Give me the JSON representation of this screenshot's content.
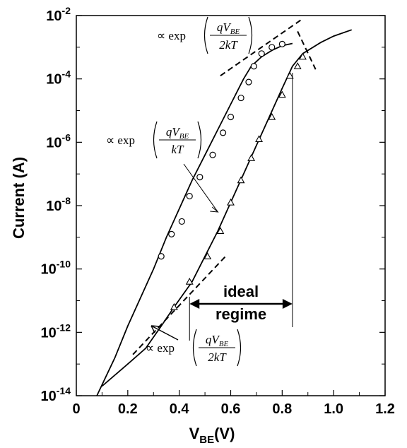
{
  "chart_data": {
    "type": "line",
    "title": "",
    "xlabel": "V",
    "xlabel_sub": "BE",
    "xlabel_unit": "(V)",
    "ylabel": "Current (A)",
    "xlim": [
      0,
      1.2
    ],
    "ylim_log10": [
      -14,
      -2
    ],
    "y_scale": "log",
    "grid": false,
    "x_ticks": [
      {
        "value": 0,
        "label": "0"
      },
      {
        "value": 0.2,
        "label": "0.2"
      },
      {
        "value": 0.4,
        "label": "0.4"
      },
      {
        "value": 0.6,
        "label": "0.6"
      },
      {
        "value": 0.8,
        "label": "0.8"
      },
      {
        "value": 1.0,
        "label": "1.0"
      },
      {
        "value": 1.2,
        "label": "1.2"
      }
    ],
    "y_ticks": [
      {
        "exp": -2,
        "base": "10",
        "sup": "-2"
      },
      {
        "exp": -4,
        "base": "10",
        "sup": "-4"
      },
      {
        "exp": -6,
        "base": "10",
        "sup": "-6"
      },
      {
        "exp": -8,
        "base": "10",
        "sup": "-8"
      },
      {
        "exp": -10,
        "base": "10",
        "sup": "-10"
      },
      {
        "exp": -12,
        "base": "10",
        "sup": "-12"
      },
      {
        "exp": -14,
        "base": "10",
        "sup": "-14"
      }
    ],
    "series": [
      {
        "marker": "circle",
        "curve": [
          [
            0.08,
            -14.0
          ],
          [
            0.15,
            -12.8
          ],
          [
            0.2,
            -11.8
          ],
          [
            0.3,
            -10.0
          ],
          [
            0.35,
            -9.0
          ],
          [
            0.4,
            -8.1
          ],
          [
            0.45,
            -7.2
          ],
          [
            0.5,
            -6.4
          ],
          [
            0.55,
            -5.6
          ],
          [
            0.6,
            -4.8
          ],
          [
            0.65,
            -4.0
          ],
          [
            0.68,
            -3.6
          ],
          [
            0.72,
            -3.3
          ],
          [
            0.76,
            -3.1
          ],
          [
            0.8,
            -2.95
          ],
          [
            0.84,
            -2.88
          ]
        ],
        "points": [
          [
            0.33,
            -9.6
          ],
          [
            0.37,
            -8.9
          ],
          [
            0.41,
            -8.5
          ],
          [
            0.44,
            -7.7
          ],
          [
            0.48,
            -7.1
          ],
          [
            0.53,
            -6.4
          ],
          [
            0.57,
            -5.7
          ],
          [
            0.6,
            -5.2
          ],
          [
            0.64,
            -4.6
          ],
          [
            0.67,
            -4.1
          ],
          [
            0.69,
            -3.6
          ],
          [
            0.72,
            -3.2
          ],
          [
            0.76,
            -3.0
          ],
          [
            0.8,
            -2.9
          ]
        ]
      },
      {
        "marker": "triangle",
        "curve": [
          [
            0.1,
            -13.7
          ],
          [
            0.2,
            -13.0
          ],
          [
            0.27,
            -12.5
          ],
          [
            0.33,
            -11.8
          ],
          [
            0.38,
            -11.2
          ],
          [
            0.45,
            -10.4
          ],
          [
            0.5,
            -9.6
          ],
          [
            0.55,
            -8.8
          ],
          [
            0.6,
            -7.9
          ],
          [
            0.65,
            -7.0
          ],
          [
            0.7,
            -6.1
          ],
          [
            0.75,
            -5.2
          ],
          [
            0.8,
            -4.3
          ],
          [
            0.84,
            -3.6
          ],
          [
            0.88,
            -3.2
          ],
          [
            0.95,
            -2.85
          ],
          [
            1.0,
            -2.65
          ],
          [
            1.07,
            -2.45
          ]
        ],
        "points": [
          [
            0.38,
            -11.2
          ],
          [
            0.44,
            -10.4
          ],
          [
            0.51,
            -9.6
          ],
          [
            0.56,
            -8.8
          ],
          [
            0.6,
            -7.9
          ],
          [
            0.64,
            -7.2
          ],
          [
            0.68,
            -6.5
          ],
          [
            0.71,
            -5.9
          ],
          [
            0.76,
            -5.2
          ],
          [
            0.8,
            -4.5
          ],
          [
            0.83,
            -3.9
          ],
          [
            0.86,
            -3.6
          ],
          [
            0.88,
            -3.3
          ]
        ]
      }
    ],
    "fit_lines": [
      {
        "style": "dashed",
        "from": [
          0.56,
          -3.9
        ],
        "to": [
          0.88,
          -2.1
        ]
      },
      {
        "style": "dashed",
        "from": [
          0.22,
          -12.7
        ],
        "to": [
          0.58,
          -9.6
        ]
      },
      {
        "style": "dashed",
        "from": [
          0.86,
          -2.5
        ],
        "to": [
          0.93,
          -3.7
        ]
      }
    ],
    "annotations": {
      "top": {
        "prefix": "∝ exp",
        "num": "qV",
        "num_sub": "BE",
        "den": "2kT"
      },
      "middle": {
        "prefix": "∝ exp",
        "num": "qV",
        "num_sub": "BE",
        "den": "kT"
      },
      "bottom": {
        "prefix": "∝ exp",
        "num": "qV",
        "num_sub": "BE",
        "den": "2kT"
      },
      "ideal_regime": {
        "line1": "ideal",
        "line2": "regime",
        "x_from": 0.44,
        "x_to": 0.84
      }
    }
  }
}
